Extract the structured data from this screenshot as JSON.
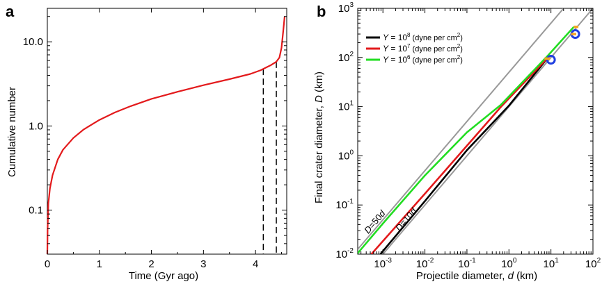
{
  "chart_data": [
    {
      "panel": "a",
      "type": "line",
      "xlabel": "Time (Gyr ago)",
      "ylabel": "Cumulative number",
      "xlim": [
        0,
        4.6
      ],
      "ylim": [
        0.03,
        25
      ],
      "yscale": "log",
      "xticks": [
        "0",
        "1",
        "2",
        "3",
        "4"
      ],
      "yticks": [
        "0.1",
        "1.0",
        "10.0"
      ],
      "series": [
        {
          "color": "#e31a1c",
          "x": [
            0.0,
            0.005,
            0.02,
            0.05,
            0.1,
            0.2,
            0.3,
            0.5,
            0.7,
            1.0,
            1.3,
            1.6,
            2.0,
            2.5,
            3.0,
            3.5,
            3.9,
            4.1,
            4.3,
            4.4,
            4.46,
            4.5,
            4.53,
            4.56
          ],
          "y": [
            0.03,
            0.06,
            0.12,
            0.18,
            0.26,
            0.4,
            0.52,
            0.72,
            0.91,
            1.18,
            1.45,
            1.72,
            2.1,
            2.55,
            3.05,
            3.6,
            4.15,
            4.6,
            5.3,
            5.8,
            6.5,
            8.5,
            13.0,
            20.0
          ]
        }
      ],
      "vlines": [
        {
          "x": 4.15,
          "style": "dashed",
          "color": "#000000"
        },
        {
          "x": 4.4,
          "style": "dashed",
          "color": "#000000"
        }
      ]
    },
    {
      "panel": "b",
      "type": "line",
      "xlabel": "Projectile diameter, d (km)",
      "ylabel": "Final crater diameter, D (km)",
      "xscale": "log",
      "yscale": "log",
      "xlim_exp": [
        -3.6,
        2
      ],
      "ylim_exp": [
        -2,
        3
      ],
      "xtick_exps": [
        -3,
        -2,
        -1,
        0,
        1,
        2
      ],
      "ytick_exps": [
        -2,
        -1,
        0,
        1,
        2,
        3
      ],
      "legend": [
        {
          "prefix": "Y",
          "eq": " = 10",
          "exp": "8",
          "units": " (dyne per cm",
          "units_exp": "2",
          "close": ")",
          "color": "#000000"
        },
        {
          "prefix": "Y",
          "eq": " = 10",
          "exp": "7",
          "units": " (dyne per cm",
          "units_exp": "2",
          "close": ")",
          "color": "#e31a1c"
        },
        {
          "prefix": "Y",
          "eq": " = 10",
          "exp": "6",
          "units": " (dyne per cm",
          "units_exp": "2",
          "close": ")",
          "color": "#22dd22"
        }
      ],
      "legend_position": "top-left",
      "reference_lines": [
        {
          "label": "D=50d",
          "factor": 50,
          "color": "#999999"
        },
        {
          "label": "D=10d",
          "factor": 10,
          "color": "#999999"
        }
      ],
      "series": [
        {
          "name": "Y = 10^8",
          "color": "#000000",
          "x": [
            0.00087,
            0.01,
            0.1,
            1.0,
            8.5
          ],
          "y": [
            0.01,
            0.12,
            1.3,
            10.5,
            100
          ]
        },
        {
          "name": "Y = 10^7",
          "color": "#e31a1c",
          "x": [
            0.00053,
            0.01,
            0.1,
            0.65,
            8.5
          ],
          "y": [
            0.01,
            0.17,
            1.6,
            10.0,
            100
          ]
        },
        {
          "name": "Y = 10^6",
          "color": "#22dd22",
          "x": [
            0.00024,
            0.001,
            0.01,
            0.1,
            0.65,
            8.5,
            35
          ],
          "y": [
            0.01,
            0.042,
            0.4,
            3.0,
            11.0,
            110,
            420
          ]
        }
      ],
      "markers": [
        {
          "shape": "circle",
          "color": "#1f3fe0",
          "x": 10,
          "y": 90
        },
        {
          "shape": "circle",
          "color": "#1f3fe0",
          "x": 38,
          "y": 300
        },
        {
          "shape": "segment",
          "color": "#f5a623",
          "x": [
            7,
            9.5
          ],
          "y": [
            95,
            95
          ]
        },
        {
          "shape": "segment",
          "color": "#f5a623",
          "x": [
            30,
            40
          ],
          "y": [
            300,
            300
          ]
        },
        {
          "shape": "segment",
          "color": "#f5a623",
          "x": [
            35,
            45
          ],
          "y": [
            420,
            420
          ]
        }
      ]
    }
  ],
  "labels": {
    "panel_a": "a",
    "panel_b": "b",
    "xlabel_a": "Time (Gyr ago)",
    "ylabel_a": "Cumulative number",
    "xlabel_b_pre": "Projectile diameter, ",
    "xlabel_b_var": "d",
    "xlabel_b_post": " (km)",
    "ylabel_b_pre": "Final crater diameter, ",
    "ylabel_b_var": "D",
    "ylabel_b_post": " (km)",
    "tick_base": "10"
  }
}
